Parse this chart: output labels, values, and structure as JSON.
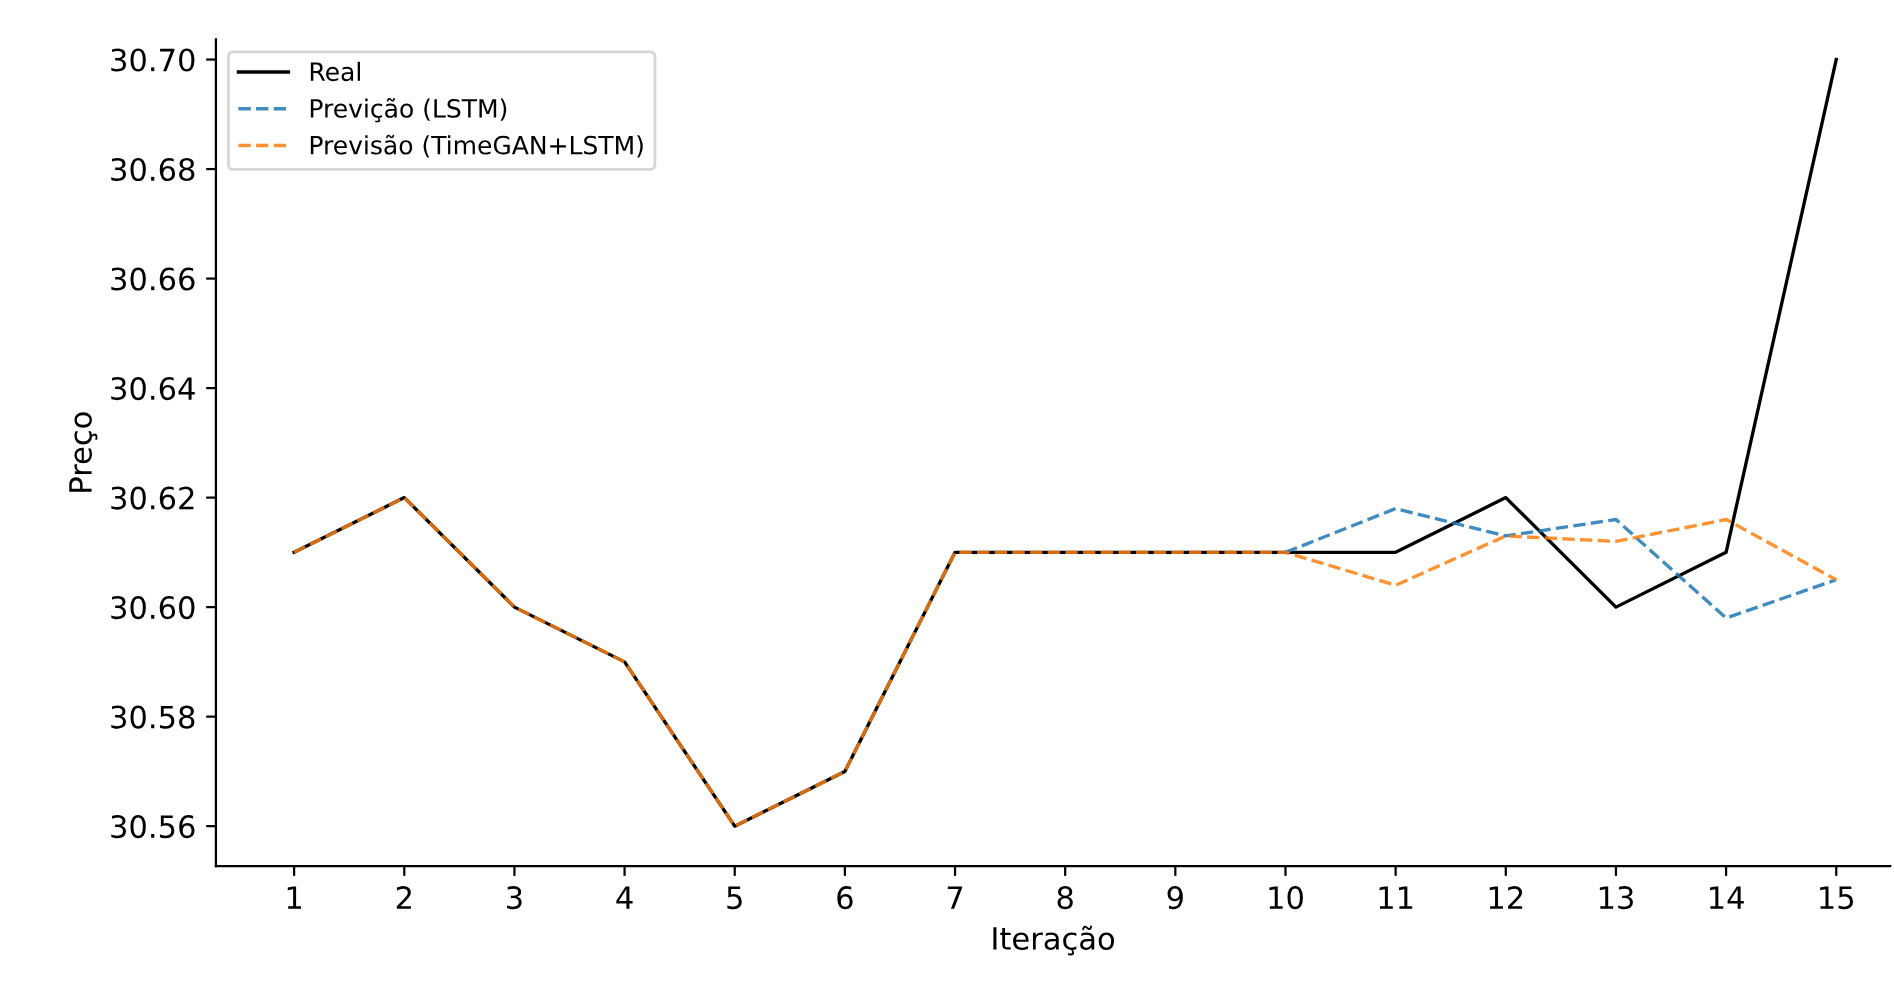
{
  "chart_data": {
    "type": "line",
    "xlabel": "Iteração",
    "ylabel": "Preço",
    "x": [
      1,
      2,
      3,
      4,
      5,
      6,
      7,
      8,
      9,
      10,
      11,
      12,
      13,
      14,
      15
    ],
    "series": [
      {
        "name": "Real",
        "color": "#000000",
        "line_style": "solid",
        "values": [
          30.61,
          30.62,
          30.6,
          30.59,
          30.56,
          30.57,
          30.61,
          30.61,
          30.61,
          30.61,
          30.61,
          30.62,
          30.6,
          30.61,
          30.7
        ]
      },
      {
        "name": "Previção (LSTM)",
        "color": "#1f77b4",
        "line_style": "dashed",
        "values": [
          null,
          null,
          null,
          null,
          null,
          null,
          null,
          null,
          null,
          30.61,
          30.618,
          30.613,
          30.616,
          30.598,
          30.605
        ]
      },
      {
        "name": "Previsão (TimeGAN+LSTM)",
        "color": "#ff7f0e",
        "line_style": "dashed",
        "values": [
          30.61,
          30.62,
          30.6,
          30.59,
          30.56,
          30.57,
          30.61,
          30.61,
          30.61,
          30.61,
          30.604,
          30.613,
          30.612,
          30.616,
          30.605
        ]
      }
    ],
    "xlim": [
      0.29,
      15.49
    ],
    "ylim": [
      30.5527,
      30.7037
    ],
    "xticks": [
      1,
      2,
      3,
      4,
      5,
      6,
      7,
      8,
      9,
      10,
      11,
      12,
      13,
      14,
      15
    ],
    "yticks": [
      {
        "value": 30.56,
        "label": "30.56"
      },
      {
        "value": 30.58,
        "label": "30.58"
      },
      {
        "value": 30.6,
        "label": "30.60"
      },
      {
        "value": 30.62,
        "label": "30.62"
      },
      {
        "value": 30.64,
        "label": "30.64"
      },
      {
        "value": 30.66,
        "label": "30.66"
      },
      {
        "value": 30.68,
        "label": "30.68"
      },
      {
        "value": 30.7,
        "label": "30.70"
      }
    ],
    "grid": false,
    "legend": "top left",
    "marker": "none"
  }
}
